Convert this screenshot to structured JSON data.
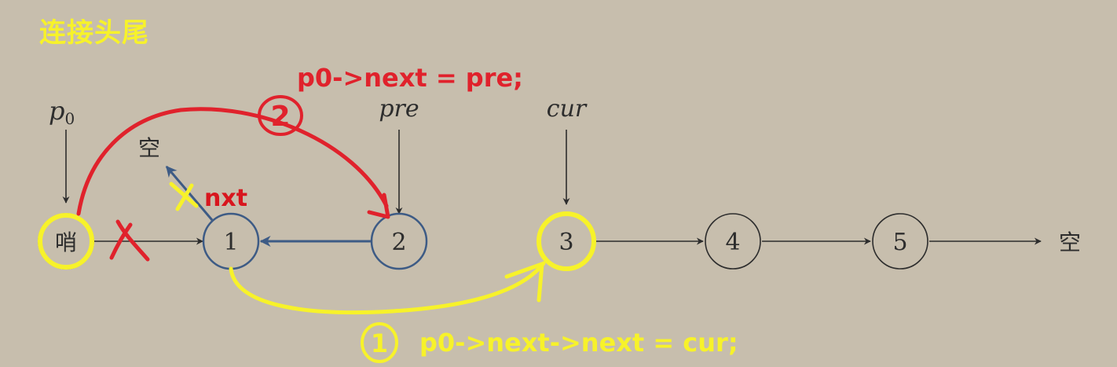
{
  "title": "连接头尾",
  "pointer_labels": {
    "p0": "p",
    "p0_sub": "0",
    "pre": "pre",
    "cur": "cur"
  },
  "null_label": "空",
  "nodes": [
    "哨",
    "1",
    "2",
    "3",
    "4",
    "5"
  ],
  "annotations": {
    "nxt": "nxt",
    "step2_badge": "2",
    "step2_code": "p0->next = pre;",
    "step1_badge": "1",
    "step1_code": "p0->next->next = cur;"
  },
  "colors": {
    "background": "#c7bead",
    "black": "#2d2d2d",
    "blue": "#3d5b85",
    "red": "#e0222c",
    "yellow": "#f7f22a"
  }
}
